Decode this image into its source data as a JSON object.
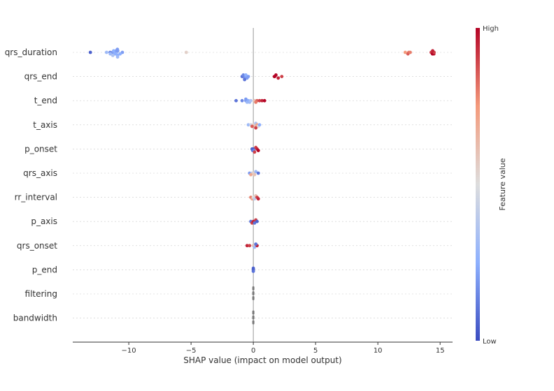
{
  "chart_data": {
    "type": "scatter",
    "subtype": "shap-beeswarm",
    "xlabel": "SHAP value (impact on model output)",
    "xlim": [
      -14.5,
      16.0
    ],
    "xticks": [
      -10,
      -5,
      0,
      5,
      10,
      15
    ],
    "xtick_labels": [
      "−10",
      "−5",
      "0",
      "5",
      "10",
      "15"
    ],
    "features": [
      {
        "name": "qrs_duration",
        "points": [
          [
            -13.0,
            0.05
          ],
          [
            -11.3,
            0.2
          ],
          [
            -11.1,
            0.25
          ],
          [
            -10.9,
            0.3
          ],
          [
            -11.0,
            0.3
          ],
          [
            -11.2,
            0.25
          ],
          [
            -10.8,
            0.2
          ],
          [
            -11.5,
            0.15
          ],
          [
            -10.6,
            0.2
          ],
          [
            -11.4,
            0.3
          ],
          [
            -10.9,
            0.25
          ],
          [
            -11.1,
            0.2
          ],
          [
            -11.7,
            0.3
          ],
          [
            -10.7,
            0.25
          ],
          [
            -11.0,
            0.2
          ],
          [
            -11.2,
            0.35
          ],
          [
            -10.9,
            0.3
          ],
          [
            -11.3,
            0.25
          ],
          [
            -5.3,
            0.55
          ],
          [
            12.2,
            0.75
          ],
          [
            12.4,
            0.8
          ],
          [
            12.5,
            0.85
          ],
          [
            12.6,
            0.8
          ],
          [
            14.2,
            0.95
          ],
          [
            14.4,
            0.9
          ],
          [
            14.5,
            0.95
          ],
          [
            14.3,
            1.0
          ],
          [
            14.6,
            0.9
          ],
          [
            14.4,
            0.95
          ]
        ]
      },
      {
        "name": "qrs_end",
        "points": [
          [
            -0.9,
            0.1
          ],
          [
            -0.7,
            0.15
          ],
          [
            -0.6,
            0.2
          ],
          [
            -0.8,
            0.15
          ],
          [
            -0.5,
            0.2
          ],
          [
            -0.7,
            0.1
          ],
          [
            -0.6,
            0.25
          ],
          [
            -0.4,
            0.2
          ],
          [
            1.6,
            0.95
          ],
          [
            1.8,
            1.0
          ],
          [
            2.0,
            0.95
          ],
          [
            2.2,
            0.9
          ],
          [
            1.9,
            1.0
          ]
        ]
      },
      {
        "name": "t_end",
        "points": [
          [
            -1.3,
            0.1
          ],
          [
            -0.9,
            0.15
          ],
          [
            -0.6,
            0.2
          ],
          [
            -0.5,
            0.3
          ],
          [
            -0.4,
            0.25
          ],
          [
            -0.3,
            0.3
          ],
          [
            -0.6,
            0.2
          ],
          [
            -0.2,
            0.35
          ],
          [
            0.1,
            0.6
          ],
          [
            0.3,
            0.85
          ],
          [
            0.5,
            0.9
          ],
          [
            0.7,
            0.95
          ],
          [
            0.9,
            1.0
          ],
          [
            0.2,
            0.8
          ]
        ]
      },
      {
        "name": "t_axis",
        "points": [
          [
            -0.4,
            0.3
          ],
          [
            -0.2,
            0.45
          ],
          [
            0.0,
            0.55
          ],
          [
            0.1,
            0.6
          ],
          [
            0.2,
            0.35
          ],
          [
            0.3,
            0.7
          ],
          [
            0.4,
            0.5
          ],
          [
            -0.1,
            0.85
          ],
          [
            0.2,
            0.9
          ],
          [
            0.5,
            0.25
          ]
        ]
      },
      {
        "name": "p_onset",
        "points": [
          [
            -0.1,
            0.05
          ],
          [
            -0.05,
            0.1
          ],
          [
            0.0,
            0.05
          ],
          [
            0.05,
            0.15
          ],
          [
            0.2,
            0.9
          ],
          [
            0.3,
            0.95
          ],
          [
            0.4,
            1.0
          ],
          [
            0.1,
            0.9
          ]
        ]
      },
      {
        "name": "qrs_axis",
        "points": [
          [
            -0.3,
            0.2
          ],
          [
            -0.1,
            0.4
          ],
          [
            0.0,
            0.55
          ],
          [
            0.1,
            0.6
          ],
          [
            0.2,
            0.3
          ],
          [
            0.4,
            0.1
          ],
          [
            -0.2,
            0.7
          ]
        ]
      },
      {
        "name": "rr_interval",
        "points": [
          [
            -0.2,
            0.8
          ],
          [
            -0.1,
            0.7
          ],
          [
            0.0,
            0.5
          ],
          [
            0.1,
            0.4
          ],
          [
            0.2,
            0.6
          ],
          [
            0.3,
            0.9
          ],
          [
            0.4,
            0.95
          ]
        ]
      },
      {
        "name": "p_axis",
        "points": [
          [
            -0.2,
            0.1
          ],
          [
            -0.1,
            0.9
          ],
          [
            0.0,
            0.95
          ],
          [
            0.1,
            0.1
          ],
          [
            0.2,
            0.9
          ],
          [
            0.3,
            0.05
          ]
        ]
      },
      {
        "name": "qrs_onset",
        "points": [
          [
            -0.5,
            0.95
          ],
          [
            -0.3,
            0.9
          ],
          [
            0.0,
            0.6
          ],
          [
            0.1,
            0.3
          ],
          [
            0.3,
            0.95
          ],
          [
            0.2,
            0.1
          ]
        ]
      },
      {
        "name": "p_end",
        "points": [
          [
            0.0,
            0.05
          ],
          [
            0.0,
            0.1
          ],
          [
            0.0,
            0.05
          ]
        ]
      },
      {
        "name": "filtering",
        "points": [
          [
            0.0,
            null
          ],
          [
            0.0,
            null
          ],
          [
            0.0,
            null
          ]
        ]
      },
      {
        "name": "bandwidth",
        "points": [
          [
            0.0,
            null
          ],
          [
            0.0,
            null
          ],
          [
            0.0,
            null
          ]
        ]
      }
    ],
    "colorbar": {
      "label": "Feature value",
      "high_label": "High",
      "low_label": "Low",
      "colormap": "coolwarm",
      "low_color": "#3b4cc0",
      "mid_color": "#dddddd",
      "high_color": "#b40426"
    },
    "missing_value_color": "#777777",
    "grid": false
  }
}
